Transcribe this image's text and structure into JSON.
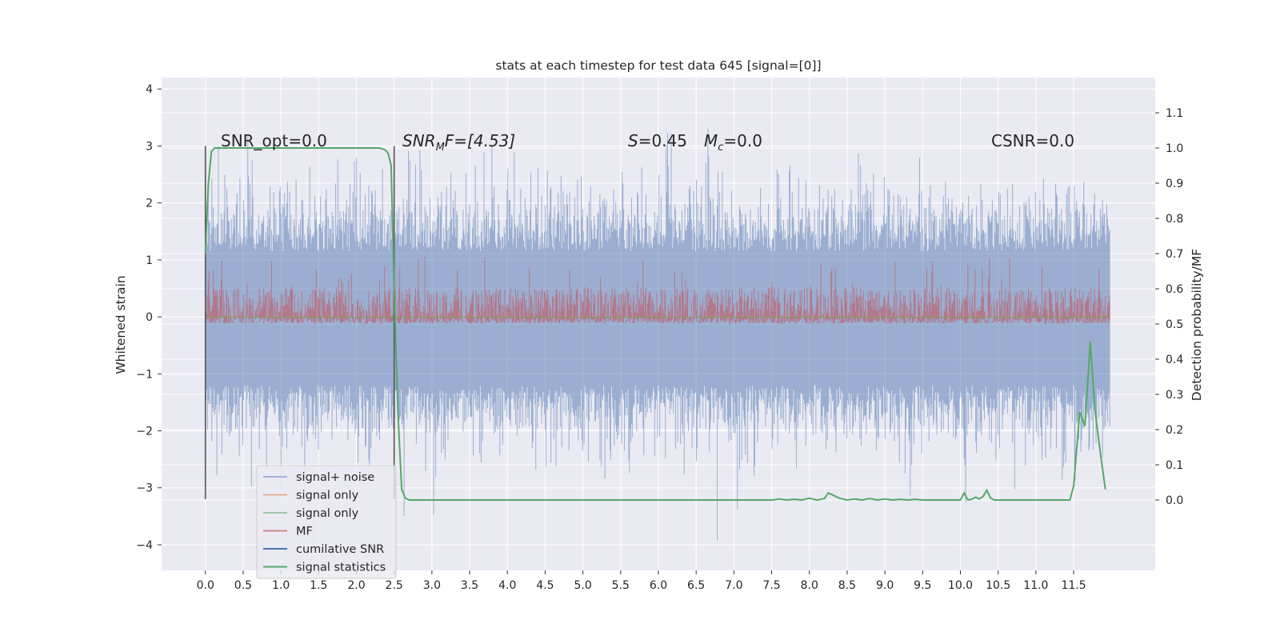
{
  "chart_data": {
    "type": "line",
    "title": "stats at each timestep for test data 645 [signal=[0]]",
    "xlabel": "",
    "ylabel": "Whitened strain",
    "ylabel_right": "Detection probability/MF",
    "xlim": [
      -0.58,
      12.58
    ],
    "ylim": [
      -4.45,
      4.2
    ],
    "ylim_right": [
      -0.2,
      1.2
    ],
    "xticks": [
      "0.0",
      "0.5",
      "1.0",
      "1.5",
      "2.0",
      "2.5",
      "3.0",
      "3.5",
      "4.0",
      "4.5",
      "5.0",
      "5.5",
      "6.0",
      "6.5",
      "7.0",
      "7.5",
      "8.0",
      "8.5",
      "9.0",
      "9.5",
      "10.0",
      "10.5",
      "11.0",
      "11.5"
    ],
    "yticks": [
      "4",
      "3",
      "2",
      "1",
      "0",
      "−1",
      "−2",
      "−3",
      "−4"
    ],
    "yticks_right": [
      "1.1",
      "1.0",
      "0.9",
      "0.8",
      "0.7",
      "0.6",
      "0.5",
      "0.4",
      "0.3",
      "0.2",
      "0.1",
      "0.0"
    ],
    "grid": true,
    "legend_position": "lower-left",
    "annotations": {
      "snr_opt": "SNR_opt=0.0",
      "snr_mf_sym": "SNR",
      "snr_mf_sub": "M",
      "snr_mf_rest": "F=[4.53]",
      "s_sym": "S",
      "s_val": "=0.45",
      "mc_sym": "M",
      "mc_sub": "c",
      "mc_val": "=0.0",
      "csnr": "CSNR=0.0"
    },
    "vertical_markers_x": [
      0.0,
      2.5
    ],
    "series": [
      {
        "name": "signal+ noise",
        "color": "#4c72b0",
        "axis": "left",
        "x_range": [
          0.0,
          11.98
        ],
        "mean": 0.0,
        "std": 1.0,
        "display": "dense noise band"
      },
      {
        "name": "signal only",
        "color": "#dd8452",
        "axis": "left",
        "x_range": [
          0.0,
          11.98
        ],
        "values_const": 0.0
      },
      {
        "name": "signal only",
        "color": "#55a868",
        "axis": "left",
        "x_range": [
          0.0,
          11.98
        ],
        "values_const": 0.0
      },
      {
        "name": "MF",
        "color": "#c44e52",
        "axis": "right",
        "x_range": [
          0.0,
          11.98
        ],
        "mean": 0.55,
        "range": [
          0.5,
          0.64
        ],
        "display": "dense noise band"
      },
      {
        "name": "cumilative SNR",
        "color": "#4c72b0",
        "axis": "right",
        "values_const": 0.0
      },
      {
        "name": "signal statistics",
        "color": "#55a868",
        "axis": "right",
        "x": [
          0.0,
          0.04,
          0.08,
          0.12,
          0.2,
          0.4,
          1.0,
          1.5,
          2.0,
          2.3,
          2.38,
          2.42,
          2.46,
          2.5,
          2.55,
          2.6,
          2.65,
          2.7,
          2.8,
          3.0,
          4.0,
          5.0,
          6.0,
          7.0,
          7.5,
          7.6,
          7.7,
          7.8,
          7.9,
          8.0,
          8.1,
          8.2,
          8.25,
          8.4,
          8.5,
          8.6,
          8.7,
          8.8,
          8.9,
          9.0,
          9.1,
          9.2,
          9.3,
          9.4,
          9.5,
          9.8,
          10.0,
          10.05,
          10.1,
          10.15,
          10.2,
          10.25,
          10.3,
          10.35,
          10.4,
          10.45,
          10.5,
          10.6,
          10.7,
          11.0,
          11.3,
          11.45,
          11.5,
          11.58,
          11.65,
          11.72,
          11.78,
          11.85,
          11.92
        ],
        "y": [
          0.7,
          0.9,
          0.99,
          1.0,
          1.0,
          1.0,
          1.0,
          1.0,
          1.0,
          1.0,
          0.995,
          0.985,
          0.95,
          0.6,
          0.25,
          0.03,
          0.005,
          0.0,
          0.0,
          0.0,
          0.0,
          0.0,
          0.0,
          0.0,
          0.0,
          0.003,
          0.0,
          0.002,
          0.0,
          0.005,
          0.0,
          0.004,
          0.02,
          0.005,
          0.0,
          0.003,
          0.0,
          0.004,
          0.0,
          0.003,
          0.0,
          0.002,
          0.0,
          0.002,
          0.0,
          0.0,
          0.0,
          0.02,
          0.0,
          0.002,
          0.008,
          0.003,
          0.01,
          0.028,
          0.005,
          0.0,
          0.0,
          0.0,
          0.0,
          0.0,
          0.0,
          0.0,
          0.04,
          0.25,
          0.21,
          0.45,
          0.26,
          0.14,
          0.03
        ]
      }
    ]
  }
}
